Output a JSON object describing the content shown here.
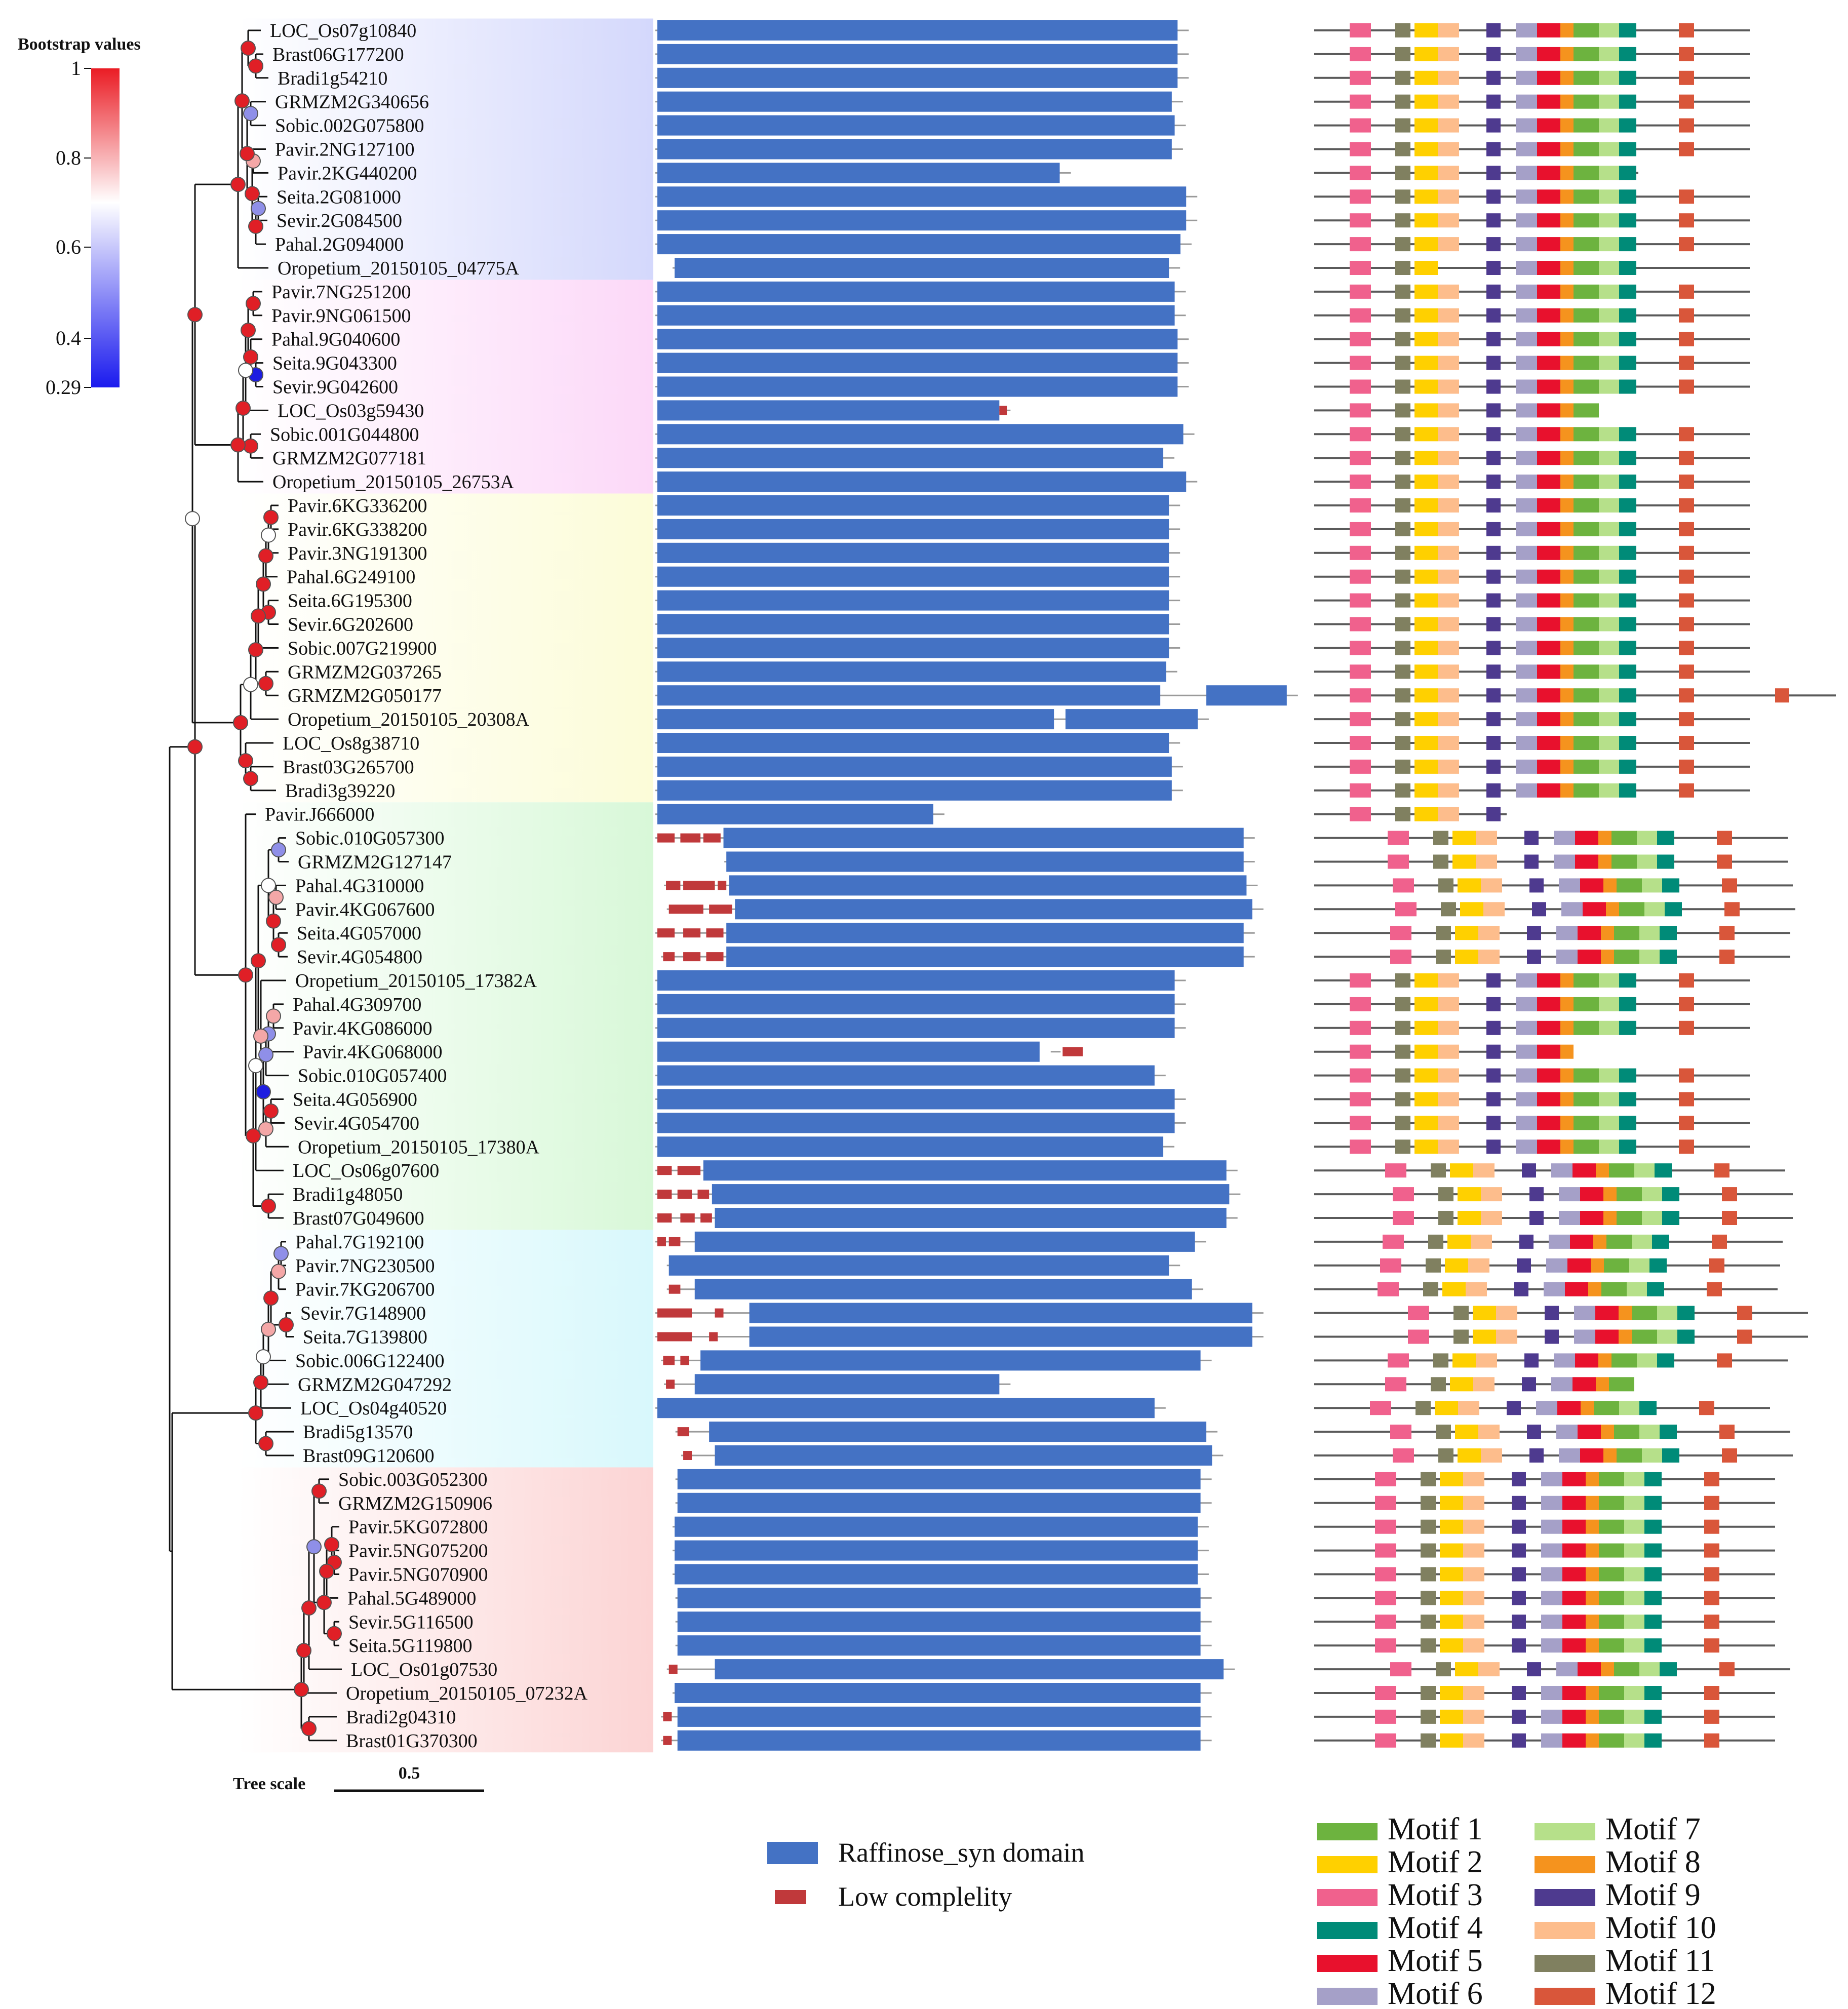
{
  "bootstrap_legend": {
    "title": "Bootstrap values",
    "ticks": [
      "1",
      "0.8",
      "0.6",
      "0.4",
      "0.29"
    ]
  },
  "tree_scale": {
    "label": "Tree scale",
    "value": "0.5"
  },
  "clade_colors": [
    "#d4d8fc",
    "#fcd8f8",
    "#fcfcd8",
    "#d8f8d8",
    "#d8f8fc",
    "#fcd4d4"
  ],
  "genes": [
    {
      "name": "LOC_Os07g10840",
      "domain": [
        0.0,
        0.905
      ],
      "lc": [],
      "motifs_start": 0.0
    },
    {
      "name": "Brast06G177200",
      "domain": [
        0.0,
        0.905
      ],
      "lc": [],
      "motifs_start": 0.0
    },
    {
      "name": "Bradi1g54210",
      "domain": [
        0.0,
        0.905
      ],
      "lc": [],
      "motifs_start": 0.0
    },
    {
      "name": "GRMZM2G340656",
      "domain": [
        0.0,
        0.895
      ],
      "lc": [],
      "motifs_start": 0.0
    },
    {
      "name": "Sobic.002G075800",
      "domain": [
        0.0,
        0.9
      ],
      "lc": [],
      "motifs_start": 0.0
    },
    {
      "name": "Pavir.2NG127100",
      "domain": [
        0.0,
        0.895
      ],
      "lc": [],
      "motifs_start": 0.0
    },
    {
      "name": "Pavir.2KG440200",
      "domain": [
        0.0,
        0.7
      ],
      "lc": [],
      "motifs_start": 0.0
    },
    {
      "name": "Seita.2G081000",
      "domain": [
        0.0,
        0.92
      ],
      "lc": [],
      "motifs_start": 0.0
    },
    {
      "name": "Sevir.2G084500",
      "domain": [
        0.0,
        0.92
      ],
      "lc": [],
      "motifs_start": 0.0
    },
    {
      "name": "Pahal.2G094000",
      "domain": [
        0.0,
        0.91
      ],
      "lc": [],
      "motifs_start": 0.0
    },
    {
      "name": "Oropetium_20150105_04775A",
      "domain": [
        0.03,
        0.89
      ],
      "lc": [],
      "motifs_start": 0.0
    },
    {
      "name": "Pavir.7NG251200",
      "domain": [
        0.0,
        0.9
      ],
      "lc": [],
      "motifs_start": 0.0
    },
    {
      "name": "Pavir.9NG061500",
      "domain": [
        0.0,
        0.9
      ],
      "lc": [],
      "motifs_start": 0.0
    },
    {
      "name": "Pahal.9G040600",
      "domain": [
        0.0,
        0.905
      ],
      "lc": [],
      "motifs_start": 0.0
    },
    {
      "name": "Seita.9G043300",
      "domain": [
        0.0,
        0.905
      ],
      "lc": [],
      "motifs_start": 0.0
    },
    {
      "name": "Sevir.9G042600",
      "domain": [
        0.0,
        0.905
      ],
      "lc": [],
      "motifs_start": 0.0
    },
    {
      "name": "LOC_Os03g59430",
      "domain": [
        0.0,
        0.595
      ],
      "lc": [
        [
          0.595,
          0.608
        ]
      ],
      "motifs_start": 0.0
    },
    {
      "name": "Sobic.001G044800",
      "domain": [
        0.0,
        0.915
      ],
      "lc": [],
      "motifs_start": 0.0
    },
    {
      "name": "GRMZM2G077181",
      "domain": [
        0.0,
        0.88
      ],
      "lc": [],
      "motifs_start": 0.0
    },
    {
      "name": "Oropetium_20150105_26753A",
      "domain": [
        0.0,
        0.92
      ],
      "lc": [],
      "motifs_start": 0.0
    },
    {
      "name": "Pavir.6KG336200",
      "domain": [
        0.0,
        0.89
      ],
      "lc": [],
      "motifs_start": 0.0
    },
    {
      "name": "Pavir.6KG338200",
      "domain": [
        0.0,
        0.89
      ],
      "lc": [],
      "motifs_start": 0.0
    },
    {
      "name": "Pavir.3NG191300",
      "domain": [
        0.0,
        0.89
      ],
      "lc": [],
      "motifs_start": 0.0
    },
    {
      "name": "Pahal.6G249100",
      "domain": [
        0.0,
        0.89
      ],
      "lc": [],
      "motifs_start": 0.0
    },
    {
      "name": "Seita.6G195300",
      "domain": [
        0.0,
        0.89
      ],
      "lc": [],
      "motifs_start": 0.0
    },
    {
      "name": "Sevir.6G202600",
      "domain": [
        0.0,
        0.89
      ],
      "lc": [],
      "motifs_start": 0.0
    },
    {
      "name": "Sobic.007G219900",
      "domain": [
        0.0,
        0.89
      ],
      "lc": [],
      "motifs_start": 0.0
    },
    {
      "name": "GRMZM2G037265",
      "domain": [
        0.0,
        0.885
      ],
      "lc": [],
      "motifs_start": 0.0
    },
    {
      "name": "GRMZM2G050177",
      "domain": [
        0.0,
        0.875
      ],
      "lc": [],
      "domain2": [
        0.955,
        1.095
      ],
      "motifs_start": 0.0
    },
    {
      "name": "Oropetium_20150105_20308A",
      "domain": [
        0.0,
        0.69
      ],
      "lc": [],
      "domain2": [
        0.71,
        0.94
      ],
      "motifs_start": 0.0
    },
    {
      "name": "LOC_Os8g38710",
      "domain": [
        0.0,
        0.89
      ],
      "lc": [],
      "motifs_start": 0.0
    },
    {
      "name": "Brast03G265700",
      "domain": [
        0.0,
        0.895
      ],
      "lc": [],
      "motifs_start": 0.0
    },
    {
      "name": "Bradi3g39220",
      "domain": [
        0.0,
        0.895
      ],
      "lc": [],
      "motifs_start": 0.0
    },
    {
      "name": "Pavir.J666000",
      "domain": [
        0.0,
        0.48
      ],
      "lc": [],
      "motifs_start": 0.0
    },
    {
      "name": "Sobic.010G057300",
      "domain": [
        0.115,
        1.02
      ],
      "lc": [
        [
          0.0,
          0.03
        ],
        [
          0.04,
          0.075
        ],
        [
          0.08,
          0.11
        ]
      ],
      "motifs_start": 0.15
    },
    {
      "name": "GRMZM2G127147",
      "domain": [
        0.12,
        1.02
      ],
      "lc": [],
      "motifs_start": 0.15
    },
    {
      "name": "Pahal.4G310000",
      "domain": [
        0.125,
        1.025
      ],
      "lc": [
        [
          0.015,
          0.04
        ],
        [
          0.045,
          0.1
        ],
        [
          0.105,
          0.12
        ]
      ],
      "motifs_start": 0.17
    },
    {
      "name": "Pavir.4KG067600",
      "domain": [
        0.135,
        1.035
      ],
      "lc": [
        [
          0.02,
          0.08
        ],
        [
          0.09,
          0.13
        ]
      ],
      "motifs_start": 0.18
    },
    {
      "name": "Seita.4G057000",
      "domain": [
        0.12,
        1.02
      ],
      "lc": [
        [
          0.0,
          0.03
        ],
        [
          0.045,
          0.075
        ],
        [
          0.085,
          0.115
        ]
      ],
      "motifs_start": 0.16
    },
    {
      "name": "Sevir.4G054800",
      "domain": [
        0.12,
        1.02
      ],
      "lc": [
        [
          0.01,
          0.03
        ],
        [
          0.045,
          0.075
        ],
        [
          0.085,
          0.115
        ]
      ],
      "motifs_start": 0.16
    },
    {
      "name": "Oropetium_20150105_17382A",
      "domain": [
        0.0,
        0.9
      ],
      "lc": [],
      "motifs_start": 0.0
    },
    {
      "name": "Pahal.4G309700",
      "domain": [
        0.0,
        0.9
      ],
      "lc": [],
      "motifs_start": 0.0
    },
    {
      "name": "Pavir.4KG086000",
      "domain": [
        0.0,
        0.9
      ],
      "lc": [],
      "motifs_start": 0.0
    },
    {
      "name": "Pavir.4KG068000",
      "domain": [
        0.0,
        0.665
      ],
      "lc": [
        [
          0.705,
          0.74
        ]
      ],
      "motifs_start": 0.0
    },
    {
      "name": "Sobic.010G057400",
      "domain": [
        0.0,
        0.865
      ],
      "lc": [],
      "motifs_start": 0.0
    },
    {
      "name": "Seita.4G056900",
      "domain": [
        0.0,
        0.9
      ],
      "lc": [],
      "motifs_start": 0.0
    },
    {
      "name": "Sevir.4G054700",
      "domain": [
        0.0,
        0.9
      ],
      "lc": [],
      "motifs_start": 0.0
    },
    {
      "name": "Oropetium_20150105_17380A",
      "domain": [
        0.0,
        0.88
      ],
      "lc": [],
      "motifs_start": 0.0
    },
    {
      "name": "LOC_Os06g07600",
      "domain": [
        0.08,
        0.99
      ],
      "lc": [
        [
          0.0,
          0.025
        ],
        [
          0.035,
          0.075
        ]
      ],
      "motifs_start": 0.14
    },
    {
      "name": "Bradi1g48050",
      "domain": [
        0.095,
        0.995
      ],
      "lc": [
        [
          0.0,
          0.025
        ],
        [
          0.035,
          0.06
        ],
        [
          0.07,
          0.09
        ]
      ],
      "motifs_start": 0.17
    },
    {
      "name": "Brast07G049600",
      "domain": [
        0.1,
        0.99
      ],
      "lc": [
        [
          0.0,
          0.025
        ],
        [
          0.04,
          0.065
        ],
        [
          0.075,
          0.095
        ]
      ],
      "motifs_start": 0.17
    },
    {
      "name": "Pahal.7G192100",
      "domain": [
        0.065,
        0.935
      ],
      "lc": [
        [
          0.0,
          0.015
        ],
        [
          0.02,
          0.04
        ]
      ],
      "motifs_start": 0.13
    },
    {
      "name": "Pavir.7NG230500",
      "domain": [
        0.02,
        0.89
      ],
      "lc": [],
      "motifs_start": 0.12
    },
    {
      "name": "Pavir.7KG206700",
      "domain": [
        0.065,
        0.93
      ],
      "lc": [
        [
          0.02,
          0.04
        ]
      ],
      "motifs_start": 0.11
    },
    {
      "name": "Sevir.7G148900",
      "domain": [
        0.16,
        1.035
      ],
      "lc": [
        [
          0.0,
          0.06
        ],
        [
          0.1,
          0.115
        ]
      ],
      "motifs_start": 0.23
    },
    {
      "name": "Seita.7G139800",
      "domain": [
        0.16,
        1.035
      ],
      "lc": [
        [
          0.0,
          0.06
        ],
        [
          0.09,
          0.105
        ]
      ],
      "motifs_start": 0.23
    },
    {
      "name": "Sobic.006G122400",
      "domain": [
        0.075,
        0.945
      ],
      "lc": [
        [
          0.01,
          0.03
        ],
        [
          0.04,
          0.055
        ]
      ],
      "motifs_start": 0.15
    },
    {
      "name": "GRMZM2G047292",
      "domain": [
        0.065,
        0.595
      ],
      "lc": [
        [
          0.015,
          0.03
        ]
      ],
      "motifs_start": 0.14
    },
    {
      "name": "LOC_Os04g40520",
      "domain": [
        0.0,
        0.865
      ],
      "lc": [],
      "motifs_start": 0.08
    },
    {
      "name": "Bradi5g13570",
      "domain": [
        0.09,
        0.955
      ],
      "lc": [
        [
          0.035,
          0.055
        ]
      ],
      "motifs_start": 0.16
    },
    {
      "name": "Brast09G120600",
      "domain": [
        0.1,
        0.965
      ],
      "lc": [
        [
          0.045,
          0.06
        ]
      ],
      "motifs_start": 0.17
    },
    {
      "name": "Sobic.003G052300",
      "domain": [
        0.035,
        0.945
      ],
      "lc": [],
      "motifs_start": 0.1
    },
    {
      "name": "GRMZM2G150906",
      "domain": [
        0.035,
        0.945
      ],
      "lc": [],
      "motifs_start": 0.1
    },
    {
      "name": "Pavir.5KG072800",
      "domain": [
        0.03,
        0.94
      ],
      "lc": [],
      "motifs_start": 0.1
    },
    {
      "name": "Pavir.5NG075200",
      "domain": [
        0.03,
        0.94
      ],
      "lc": [],
      "motifs_start": 0.1
    },
    {
      "name": "Pavir.5NG070900",
      "domain": [
        0.03,
        0.94
      ],
      "lc": [],
      "motifs_start": 0.1
    },
    {
      "name": "Pahal.5G489000",
      "domain": [
        0.035,
        0.945
      ],
      "lc": [],
      "motifs_start": 0.1
    },
    {
      "name": "Sevir.5G116500",
      "domain": [
        0.035,
        0.945
      ],
      "lc": [],
      "motifs_start": 0.1
    },
    {
      "name": "Seita.5G119800",
      "domain": [
        0.035,
        0.945
      ],
      "lc": [],
      "motifs_start": 0.1
    },
    {
      "name": "LOC_Os01g07530",
      "domain": [
        0.1,
        0.985
      ],
      "lc": [
        [
          0.02,
          0.035
        ]
      ],
      "motifs_start": 0.16
    },
    {
      "name": "Oropetium_20150105_07232A",
      "domain": [
        0.03,
        0.945
      ],
      "lc": [],
      "motifs_start": 0.1
    },
    {
      "name": "Bradi2g04310",
      "domain": [
        0.035,
        0.945
      ],
      "lc": [
        [
          0.01,
          0.025
        ]
      ],
      "motifs_start": 0.1
    },
    {
      "name": "Brast01G370300",
      "domain": [
        0.035,
        0.945
      ],
      "lc": [
        [
          0.01,
          0.025
        ]
      ],
      "motifs_start": 0.1
    }
  ],
  "domain_legend": {
    "raffinose": "Raffinose_syn domain",
    "low_complexity": "Low complelity",
    "raffinose_color": "#4472c4",
    "low_complexity_color": "#c0393b"
  },
  "motifs": [
    {
      "name": "Motif 1",
      "color": "#6db33f"
    },
    {
      "name": "Motif 2",
      "color": "#ffd000"
    },
    {
      "name": "Motif 3",
      "color": "#f0618d"
    },
    {
      "name": "Motif 4",
      "color": "#008b78"
    },
    {
      "name": "Motif 5",
      "color": "#e8112d"
    },
    {
      "name": "Motif 6",
      "color": "#a5a0c8"
    },
    {
      "name": "Motif 7",
      "color": "#b6e08a"
    },
    {
      "name": "Motif 8",
      "color": "#f5931e"
    },
    {
      "name": "Motif 9",
      "color": "#4e3a8f"
    },
    {
      "name": "Motif 10",
      "color": "#fdbd8c"
    },
    {
      "name": "Motif 11",
      "color": "#808060"
    },
    {
      "name": "Motif 12",
      "color": "#d9563a"
    }
  ]
}
